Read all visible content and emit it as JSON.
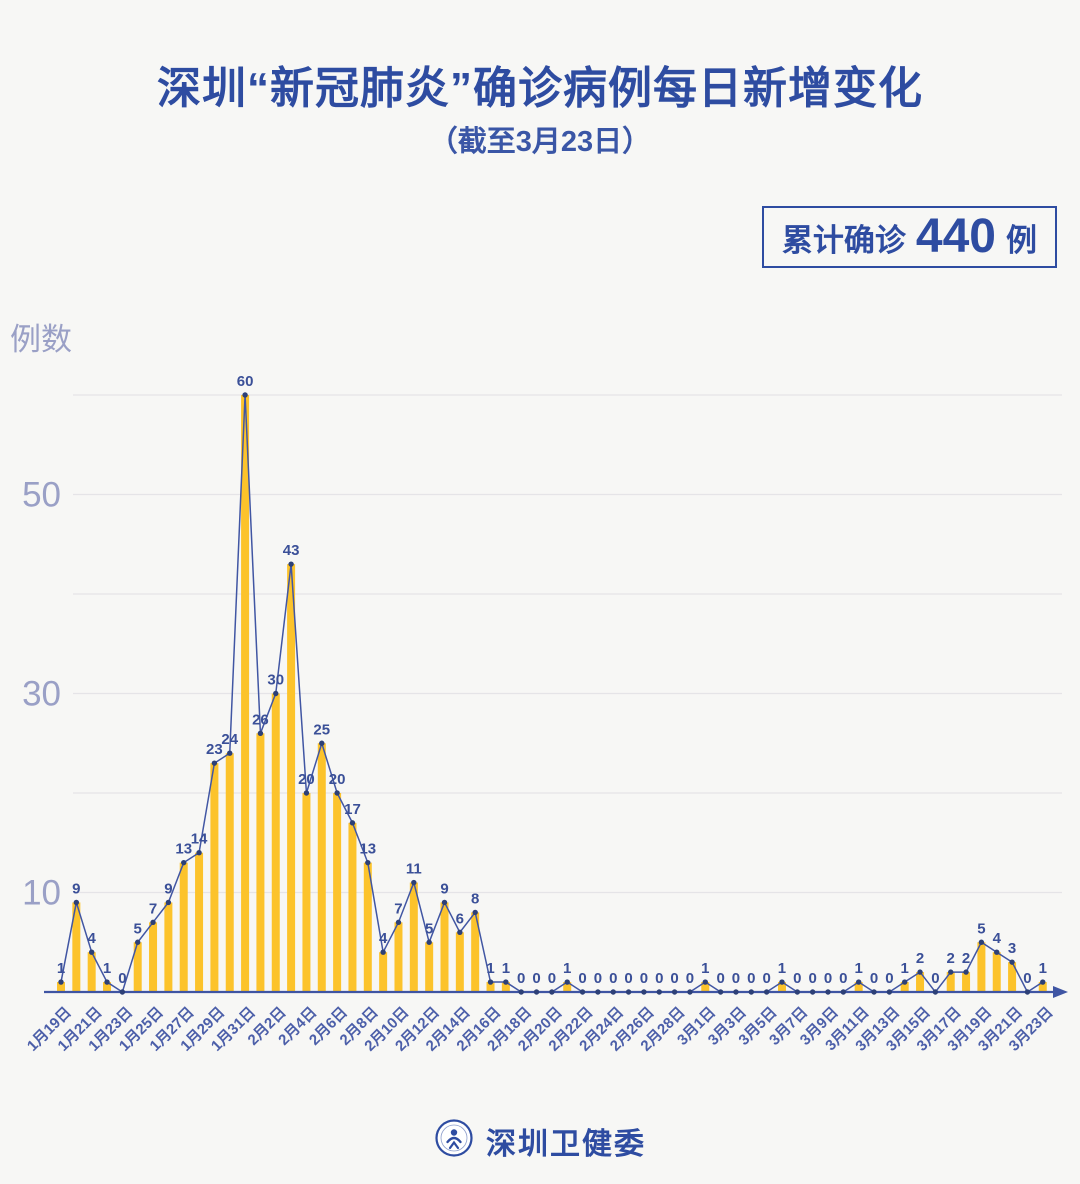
{
  "header": {
    "title": "深圳“新冠肺炎”确诊病例每日新增变化",
    "subtitle": "（截至3月23日）"
  },
  "summary_badge": {
    "prefix": "累计确诊",
    "value": "440",
    "suffix": "例"
  },
  "footer": {
    "org_name": "深圳卫健委",
    "logo_icon": "shenzhen-health-commission-emblem"
  },
  "chart_data": {
    "type": "bar",
    "line_overlay": true,
    "title": "深圳“新冠肺炎”确诊病例每日新增变化",
    "subtitle": "（截至3月23日）",
    "ylabel": "例数",
    "xlabel": "",
    "ylim": [
      0,
      62
    ],
    "grid": "horizontal",
    "gridline_values": [
      10,
      20,
      30,
      40,
      50,
      60
    ],
    "y_ticks_labeled": [
      50,
      30,
      10
    ],
    "point_labels_shown": true,
    "x_tick_labels": [
      "1月19日",
      "1月21日",
      "1月23日",
      "1月25日",
      "1月27日",
      "1月29日",
      "1月31日",
      "2月2日",
      "2月4日",
      "2月6日",
      "2月8日",
      "2月10日",
      "2月12日",
      "2月14日",
      "2月16日",
      "2月18日",
      "2月20日",
      "2月22日",
      "2月24日",
      "2月26日",
      "2月28日",
      "3月1日",
      "3月3日",
      "3月5日",
      "3月7日",
      "3月9日",
      "3月11日",
      "3月13日",
      "3月15日",
      "3月17日",
      "3月19日",
      "3月21日",
      "3月23日"
    ],
    "categories": [
      "1月19日",
      "1月20日",
      "1月21日",
      "1月22日",
      "1月23日",
      "1月24日",
      "1月25日",
      "1月26日",
      "1月27日",
      "1月28日",
      "1月29日",
      "1月30日",
      "1月31日",
      "2月1日",
      "2月2日",
      "2月3日",
      "2月4日",
      "2月5日",
      "2月6日",
      "2月7日",
      "2月8日",
      "2月9日",
      "2月10日",
      "2月11日",
      "2月12日",
      "2月13日",
      "2月14日",
      "2月15日",
      "2月16日",
      "2月17日",
      "2月18日",
      "2月19日",
      "2月20日",
      "2月21日",
      "2月22日",
      "2月23日",
      "2月24日",
      "2月25日",
      "2月26日",
      "2月27日",
      "2月28日",
      "2月29日",
      "3月1日",
      "3月2日",
      "3月3日",
      "3月4日",
      "3月5日",
      "3月6日",
      "3月7日",
      "3月8日",
      "3月9日",
      "3月10日",
      "3月11日",
      "3月12日",
      "3月13日",
      "3月14日",
      "3月15日",
      "3月16日",
      "3月17日",
      "3月18日",
      "3月19日",
      "3月20日",
      "3月21日",
      "3月22日",
      "3月23日"
    ],
    "values": [
      1,
      9,
      4,
      1,
      0,
      5,
      7,
      9,
      13,
      14,
      23,
      24,
      60,
      26,
      30,
      43,
      20,
      25,
      20,
      17,
      13,
      4,
      7,
      11,
      5,
      9,
      6,
      8,
      1,
      1,
      0,
      0,
      0,
      1,
      0,
      0,
      0,
      0,
      0,
      0,
      0,
      0,
      1,
      0,
      0,
      0,
      0,
      1,
      0,
      0,
      0,
      0,
      1,
      0,
      0,
      1,
      2,
      0,
      2,
      2,
      5,
      4,
      3,
      0,
      1
    ],
    "colors": {
      "background": "#f7f7f5",
      "bar": "#fcc32b",
      "line": "#4156a3",
      "point": "#2d4077",
      "value_label": "#3b5098",
      "x_tick": "#4c5fa9",
      "y_tick": "#9aa0c6",
      "grid": "#e5e4e7",
      "axis": "#3f55a3",
      "accent_blue": "#2e4ca1"
    }
  }
}
